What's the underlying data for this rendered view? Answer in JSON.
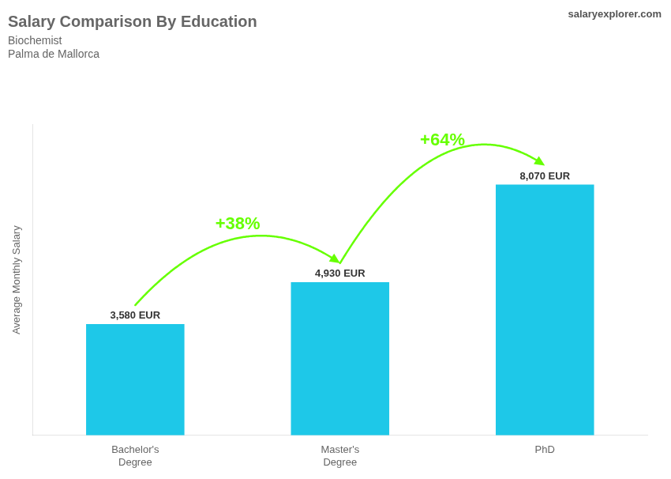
{
  "chart_data": {
    "type": "bar",
    "title": "Salary Comparison By Education",
    "subtitle": [
      "Biochemist",
      "Palma de Mallorca"
    ],
    "ylabel": "Average Monthly Salary",
    "categories": [
      "Bachelor's\nDegree",
      "Master's\nDegree",
      "PhD"
    ],
    "values": [
      3580,
      4930,
      8070
    ],
    "value_labels": [
      "3,580 EUR",
      "4,930 EUR",
      "8,070 EUR"
    ],
    "data_labels": true,
    "color": "#1EC8E8",
    "ylim": [
      0,
      10000
    ],
    "tick_labels": "x",
    "grid": false,
    "annotations": [
      {
        "text": "+38%",
        "from": "Bachelor's\nDegree",
        "to": "Master's\nDegree",
        "color": "#66FF00"
      },
      {
        "text": "+64%",
        "from": "Master's\nDegree",
        "to": "PhD",
        "color": "#66FF00"
      },
      {
        "text": "salaryexplorer.com"
      }
    ]
  }
}
